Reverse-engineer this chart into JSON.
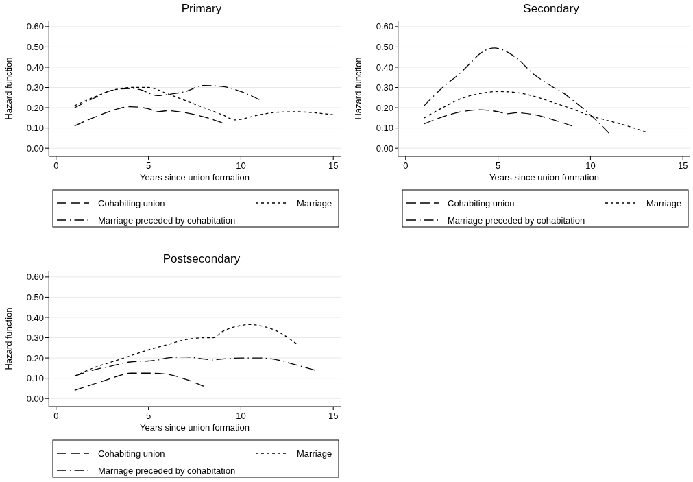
{
  "chart_data": [
    {
      "type": "line",
      "title": "Primary",
      "xlabel": "Years since union formation",
      "ylabel": "Hazard function",
      "xlim": [
        -0.4,
        15.4
      ],
      "xticks": [
        0,
        5,
        10,
        15
      ],
      "ylim": [
        -0.04,
        0.63
      ],
      "yticks": [
        {
          "value": 0,
          "label": "0.00"
        },
        {
          "value": 0.1,
          "label": "0.10"
        },
        {
          "value": 0.2,
          "label": "0.20"
        },
        {
          "value": 0.3,
          "label": "0.30"
        },
        {
          "value": 0.4,
          "label": "0.40"
        },
        {
          "value": 0.5,
          "label": "0.50"
        },
        {
          "value": 0.6,
          "label": "0.60"
        }
      ],
      "grid": "y",
      "legend": "bottom",
      "series": [
        {
          "name": "Cohabiting union",
          "color": "#000000",
          "line_style": "dashed",
          "x": [
            1,
            2,
            3,
            4,
            5,
            5.5,
            6,
            7,
            8,
            9
          ],
          "values": [
            0.11,
            0.15,
            0.185,
            0.205,
            0.195,
            0.18,
            0.185,
            0.175,
            0.155,
            0.125
          ]
        },
        {
          "name": "Marriage",
          "color": "#000000",
          "line_style": "dotted",
          "x": [
            1,
            2,
            3,
            4,
            5,
            6,
            7,
            8,
            9,
            9.7,
            11,
            12,
            13,
            14,
            15
          ],
          "values": [
            0.21,
            0.25,
            0.285,
            0.3,
            0.3,
            0.27,
            0.235,
            0.2,
            0.165,
            0.14,
            0.165,
            0.178,
            0.18,
            0.175,
            0.165
          ]
        },
        {
          "name": "Marriage preceded by cohabitation",
          "color": "#000000",
          "line_style": "dashdot",
          "x": [
            1,
            2,
            3,
            4,
            4.5,
            5.5,
            6,
            7,
            8,
            9,
            10,
            11
          ],
          "values": [
            0.2,
            0.245,
            0.285,
            0.295,
            0.29,
            0.26,
            0.265,
            0.28,
            0.31,
            0.305,
            0.28,
            0.24
          ]
        }
      ]
    },
    {
      "type": "line",
      "title": "Secondary",
      "xlabel": "Years since union formation",
      "ylabel": "Hazard function",
      "xlim": [
        -0.4,
        15.4
      ],
      "xticks": [
        0,
        5,
        10,
        15
      ],
      "ylim": [
        -0.04,
        0.63
      ],
      "yticks": [
        {
          "value": 0,
          "label": "0.00"
        },
        {
          "value": 0.1,
          "label": "0.10"
        },
        {
          "value": 0.2,
          "label": "0.20"
        },
        {
          "value": 0.3,
          "label": "0.30"
        },
        {
          "value": 0.4,
          "label": "0.40"
        },
        {
          "value": 0.5,
          "label": "0.50"
        },
        {
          "value": 0.6,
          "label": "0.60"
        }
      ],
      "grid": "y",
      "legend": "bottom",
      "series": [
        {
          "name": "Cohabiting union",
          "color": "#000000",
          "line_style": "dashed",
          "x": [
            1,
            2,
            3,
            4,
            5,
            5.5,
            6,
            7,
            8,
            9
          ],
          "values": [
            0.12,
            0.155,
            0.18,
            0.19,
            0.18,
            0.17,
            0.175,
            0.165,
            0.14,
            0.11
          ]
        },
        {
          "name": "Marriage",
          "color": "#000000",
          "line_style": "dotted",
          "x": [
            1,
            2,
            3,
            4,
            5,
            6,
            7,
            8,
            9,
            10,
            11,
            12,
            13
          ],
          "values": [
            0.15,
            0.2,
            0.245,
            0.27,
            0.28,
            0.275,
            0.255,
            0.225,
            0.195,
            0.16,
            0.135,
            0.11,
            0.08
          ]
        },
        {
          "name": "Marriage preceded by cohabitation",
          "color": "#000000",
          "line_style": "dashdot",
          "x": [
            1,
            2,
            3,
            3.5,
            4,
            4.8,
            5.5,
            6,
            7,
            7.5,
            8,
            8.5,
            9,
            10,
            11
          ],
          "values": [
            0.21,
            0.3,
            0.375,
            0.42,
            0.465,
            0.495,
            0.475,
            0.445,
            0.36,
            0.33,
            0.3,
            0.275,
            0.24,
            0.165,
            0.075
          ]
        }
      ]
    },
    {
      "type": "line",
      "title": "Postsecondary",
      "xlabel": "Years since union formation",
      "ylabel": "Hazard function",
      "xlim": [
        -0.4,
        15.4
      ],
      "xticks": [
        0,
        5,
        10,
        15
      ],
      "ylim": [
        -0.04,
        0.63
      ],
      "yticks": [
        {
          "value": 0,
          "label": "0.00"
        },
        {
          "value": 0.1,
          "label": "0.10"
        },
        {
          "value": 0.2,
          "label": "0.20"
        },
        {
          "value": 0.3,
          "label": "0.30"
        },
        {
          "value": 0.4,
          "label": "0.40"
        },
        {
          "value": 0.5,
          "label": "0.50"
        },
        {
          "value": 0.6,
          "label": "0.60"
        }
      ],
      "grid": "y",
      "legend": "bottom",
      "series": [
        {
          "name": "Cohabiting union",
          "color": "#000000",
          "line_style": "dashed",
          "x": [
            1,
            2,
            3,
            3.5,
            4,
            5,
            6,
            7,
            8
          ],
          "values": [
            0.04,
            0.07,
            0.1,
            0.115,
            0.125,
            0.125,
            0.12,
            0.095,
            0.06
          ]
        },
        {
          "name": "Marriage",
          "color": "#000000",
          "line_style": "dotted",
          "x": [
            1,
            2,
            3,
            4,
            5,
            6,
            7,
            8,
            8.5,
            9,
            10,
            10.5,
            11,
            12,
            13
          ],
          "values": [
            0.11,
            0.15,
            0.18,
            0.21,
            0.24,
            0.265,
            0.29,
            0.3,
            0.3,
            0.33,
            0.36,
            0.365,
            0.36,
            0.33,
            0.27
          ]
        },
        {
          "name": "Marriage preceded by cohabitation",
          "color": "#000000",
          "line_style": "dashdot",
          "x": [
            1,
            2,
            3,
            4,
            5,
            5.5,
            6,
            7,
            8,
            8.5,
            9,
            10,
            11,
            12,
            13,
            14
          ],
          "values": [
            0.11,
            0.14,
            0.16,
            0.18,
            0.185,
            0.19,
            0.2,
            0.205,
            0.195,
            0.19,
            0.195,
            0.2,
            0.2,
            0.19,
            0.165,
            0.14
          ]
        }
      ]
    }
  ]
}
